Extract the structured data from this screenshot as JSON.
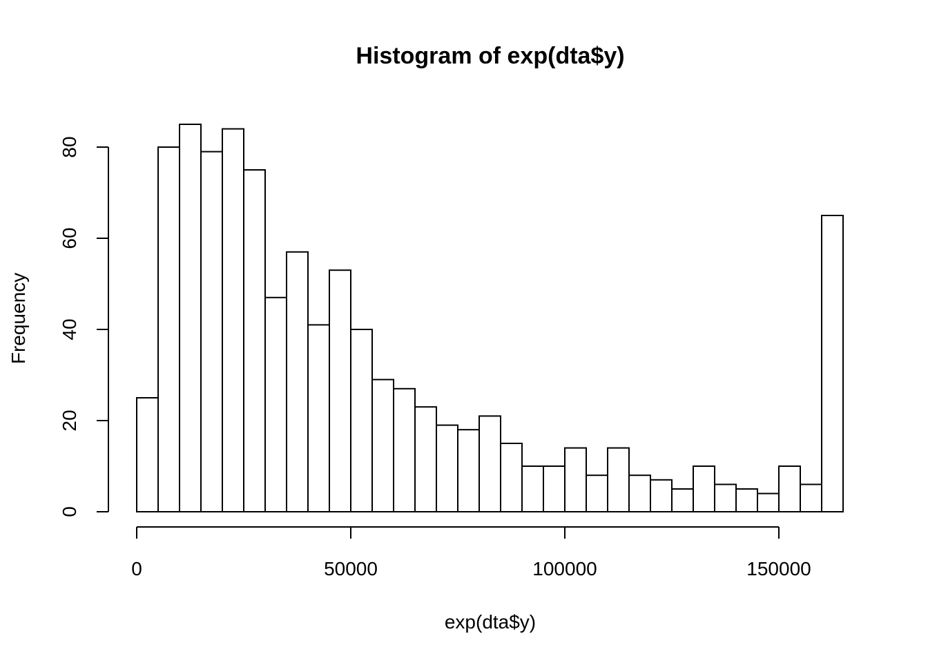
{
  "chart_data": {
    "type": "bar",
    "title": "Histogram of exp(dta$y)",
    "xlabel": "exp(dta$y)",
    "ylabel": "Frequency",
    "bin_start": 0,
    "bin_width": 5000,
    "values": [
      25,
      80,
      85,
      79,
      84,
      75,
      47,
      57,
      41,
      53,
      40,
      29,
      27,
      23,
      19,
      18,
      21,
      15,
      10,
      10,
      14,
      8,
      14,
      8,
      7,
      5,
      10,
      6,
      5,
      4,
      10,
      6,
      65
    ],
    "xlim": [
      0,
      165000
    ],
    "ylim": [
      0,
      85
    ],
    "x_ticks": [
      0,
      50000,
      100000,
      150000
    ],
    "x_tick_labels": [
      "0",
      "50000",
      "100000",
      "150000"
    ],
    "y_ticks": [
      0,
      20,
      40,
      60,
      80
    ],
    "y_tick_labels": [
      "0",
      "20",
      "40",
      "60",
      "80"
    ],
    "grid": false,
    "bar_fill": "#ffffff",
    "bar_stroke": "#000000"
  }
}
